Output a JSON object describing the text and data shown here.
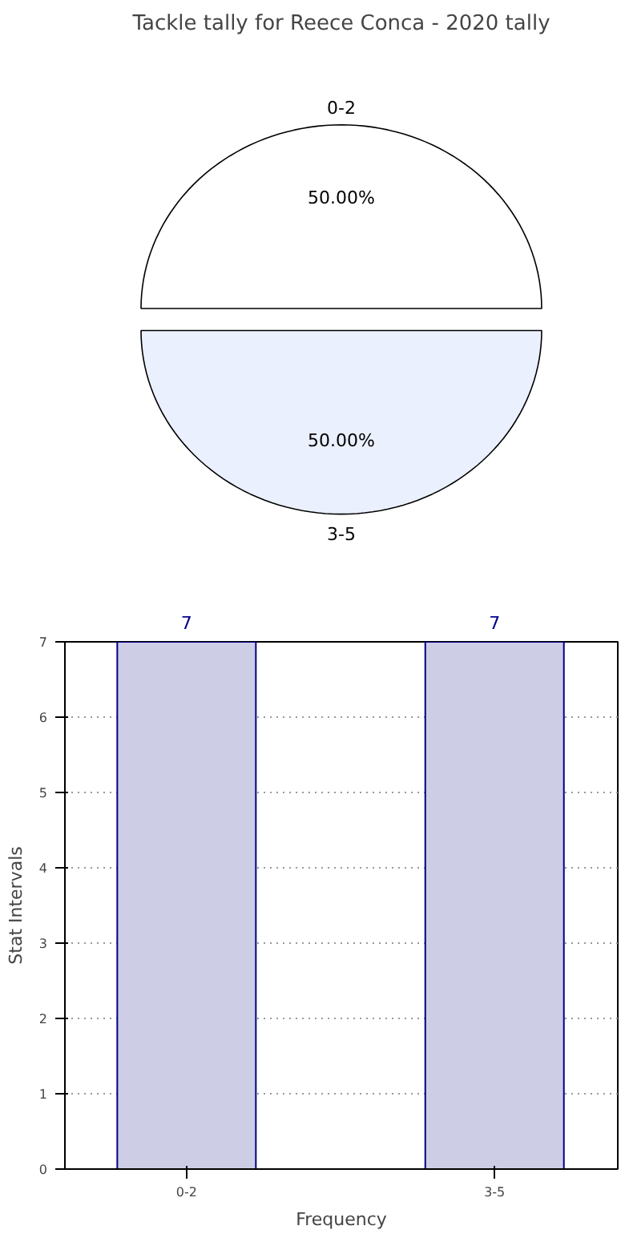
{
  "chart_data": [
    {
      "type": "pie",
      "title": "Tackle tally for Reece Conca - 2020 tally",
      "categories": [
        "0-2",
        "3-5"
      ],
      "values": [
        50,
        50
      ],
      "colors": [
        "#ffffff",
        "#eaf0fd"
      ],
      "value_labels": [
        "50.00%",
        "50.00%"
      ]
    },
    {
      "type": "bar",
      "categories": [
        "0-2",
        "3-5"
      ],
      "values": [
        7,
        7
      ],
      "color": "#cdcde5",
      "xlabel": "Frequency",
      "ylabel": "Stat Intervals",
      "ylim": [
        0,
        7
      ],
      "yticks": [
        0,
        1,
        2,
        3,
        4,
        5,
        6,
        7
      ],
      "grid": true,
      "data_labels": true
    }
  ]
}
